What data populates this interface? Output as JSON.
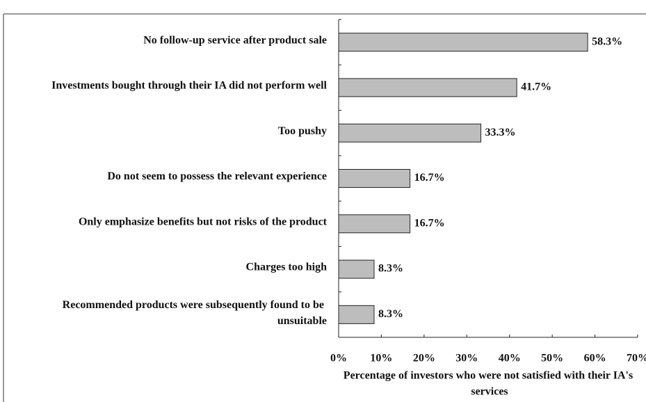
{
  "chart_data": {
    "type": "bar",
    "orientation": "horizontal",
    "categories": [
      "No follow-up service after product sale",
      "Investments bought through their IA did not perform well",
      "Too pushy",
      "Do not seem to possess the relevant experience",
      "Only emphasize benefits but not risks of the product",
      "Charges too high",
      "Recommended products were subsequently found to be unsuitable"
    ],
    "values": [
      58.3,
      41.7,
      33.3,
      16.7,
      16.7,
      8.3,
      8.3
    ],
    "value_labels": [
      "58.3%",
      "41.7%",
      "33.3%",
      "16.7%",
      "16.7%",
      "8.3%",
      "8.3%"
    ],
    "color": "#bdbdbd",
    "xlabel": "Percentage of investors who were not satisfied with their IA's services",
    "xlim": [
      0,
      70
    ],
    "xticks": [
      {
        "value": 0,
        "label": "0%"
      },
      {
        "value": 10,
        "label": "10%"
      },
      {
        "value": 20,
        "label": "20%"
      },
      {
        "value": 30,
        "label": "30%"
      },
      {
        "value": 40,
        "label": "40%"
      },
      {
        "value": 50,
        "label": "50%"
      },
      {
        "value": 60,
        "label": "60%"
      },
      {
        "value": 70,
        "label": "70%"
      }
    ]
  }
}
